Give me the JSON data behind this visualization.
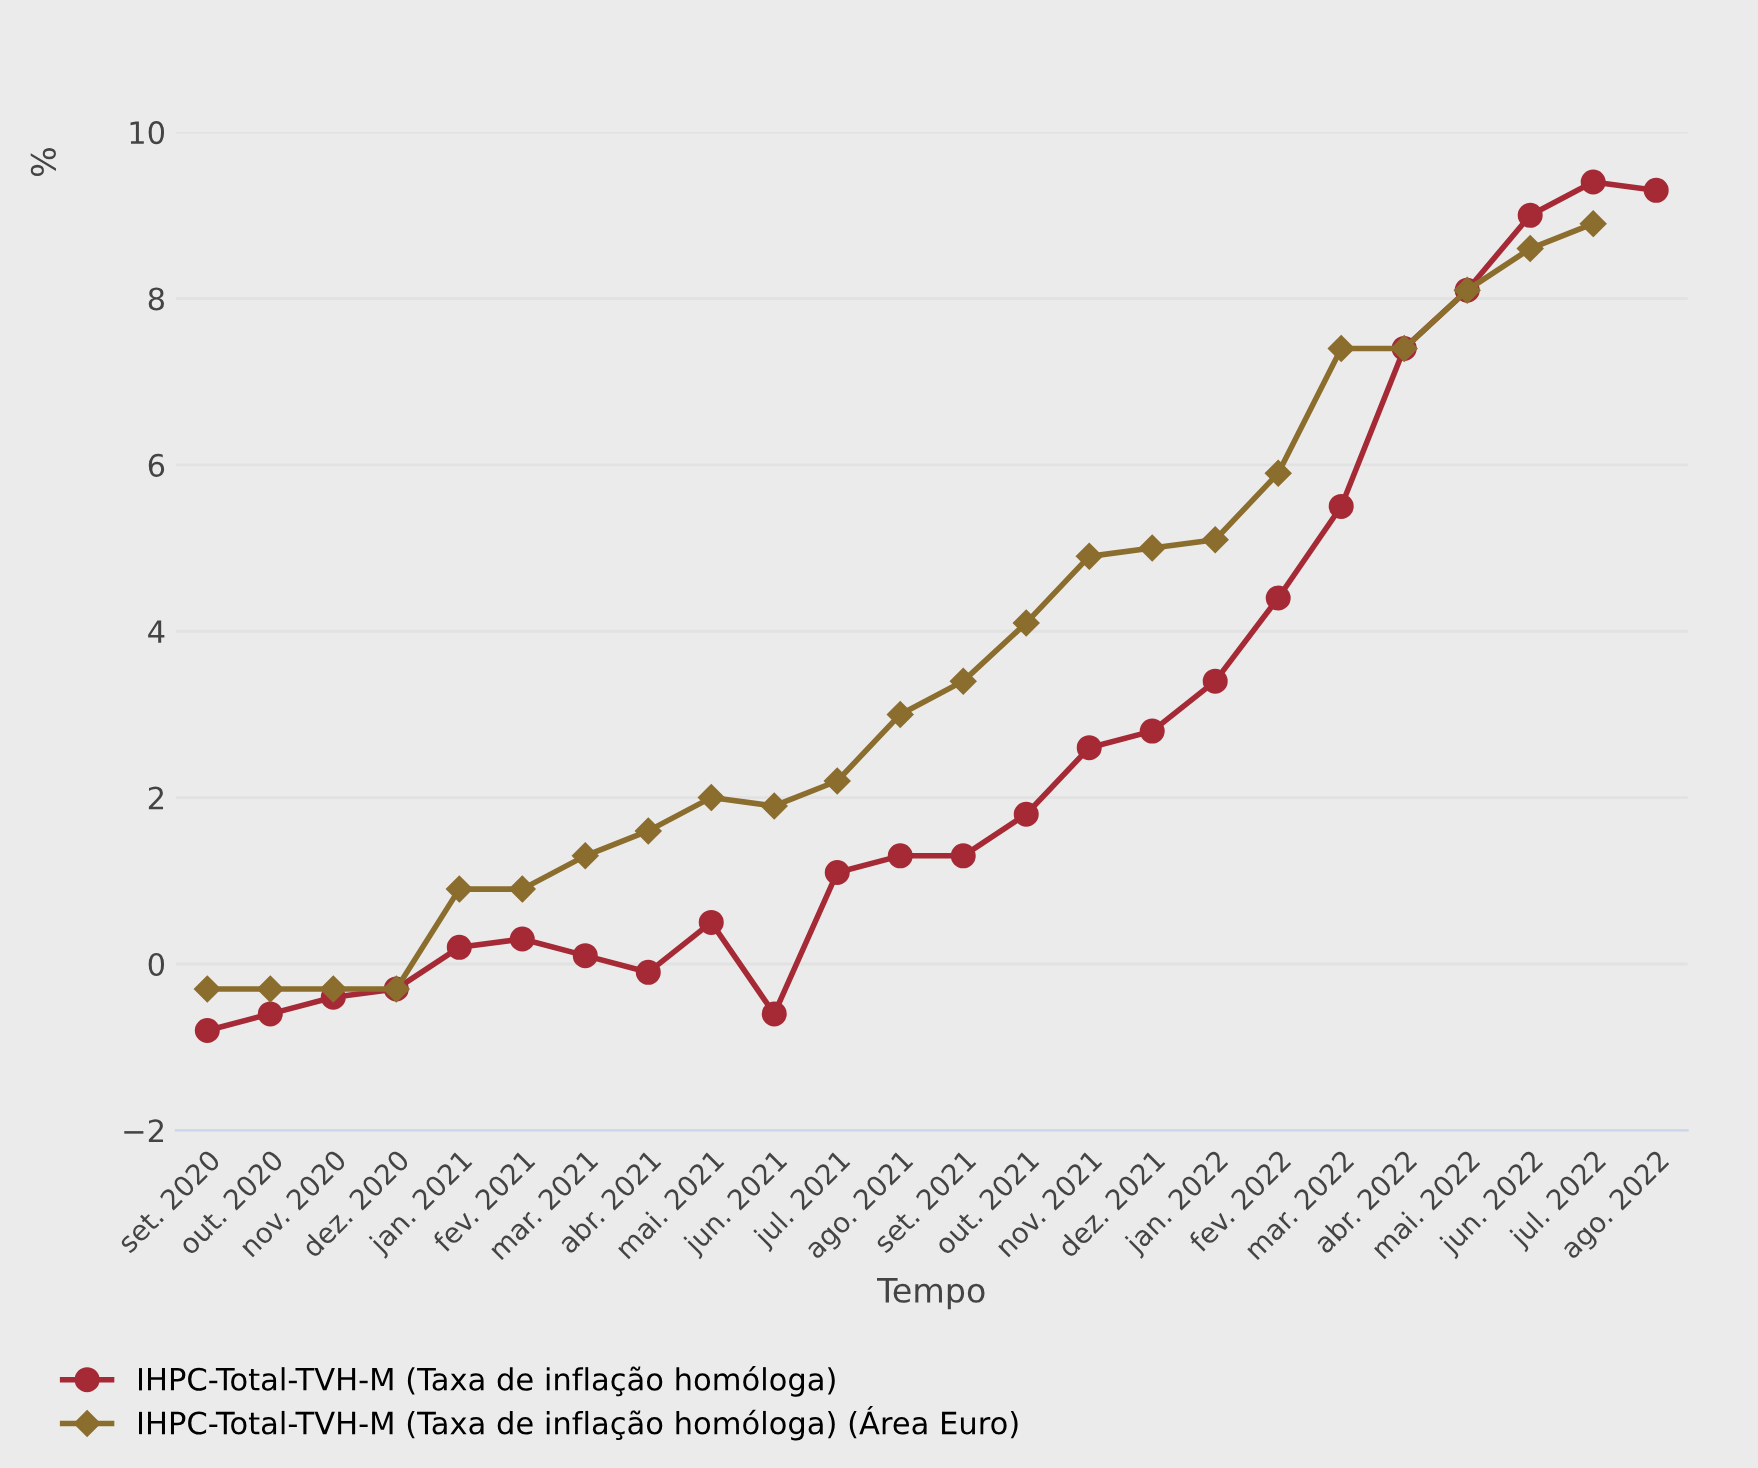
{
  "chart_data": {
    "type": "line",
    "xlabel": "Tempo",
    "ylabel": "%",
    "categories": [
      "set. 2020",
      "out. 2020",
      "nov. 2020",
      "dez. 2020",
      "jan. 2021",
      "fev. 2021",
      "mar. 2021",
      "abr. 2021",
      "mai. 2021",
      "jun. 2021",
      "jul. 2021",
      "ago. 2021",
      "set. 2021",
      "out. 2021",
      "nov. 2021",
      "dez. 2021",
      "jan. 2022",
      "fev. 2022",
      "mar. 2022",
      "abr. 2022",
      "mai. 2022",
      "jun. 2022",
      "jul. 2022",
      "ago. 2022"
    ],
    "series": [
      {
        "name": "IHPC-Total-TVH-M (Taxa de inflação homóloga)",
        "color": "#a52a35",
        "marker": "circle",
        "values": [
          -0.8,
          -0.6,
          -0.4,
          -0.3,
          0.2,
          0.3,
          0.1,
          -0.1,
          0.5,
          -0.6,
          1.1,
          1.3,
          1.3,
          1.8,
          2.6,
          2.8,
          3.4,
          4.4,
          5.5,
          7.4,
          8.1,
          9.0,
          9.4,
          9.3
        ]
      },
      {
        "name": "IHPC-Total-TVH-M (Taxa de inflação homóloga) (Área Euro)",
        "color": "#8b6d2e",
        "marker": "diamond",
        "values": [
          -0.3,
          -0.3,
          -0.3,
          -0.3,
          0.9,
          0.9,
          1.3,
          1.6,
          2.0,
          1.9,
          2.2,
          3.0,
          3.4,
          4.1,
          4.9,
          5.0,
          5.1,
          5.9,
          7.4,
          7.4,
          8.1,
          8.6,
          8.9,
          null
        ]
      }
    ],
    "ylim": [
      -2,
      10
    ],
    "yticks": [
      {
        "value": -2,
        "label": "−2"
      },
      0,
      2,
      4,
      6,
      8,
      10
    ],
    "grid": "y",
    "legend": "bottom left",
    "line_style": "solid"
  }
}
